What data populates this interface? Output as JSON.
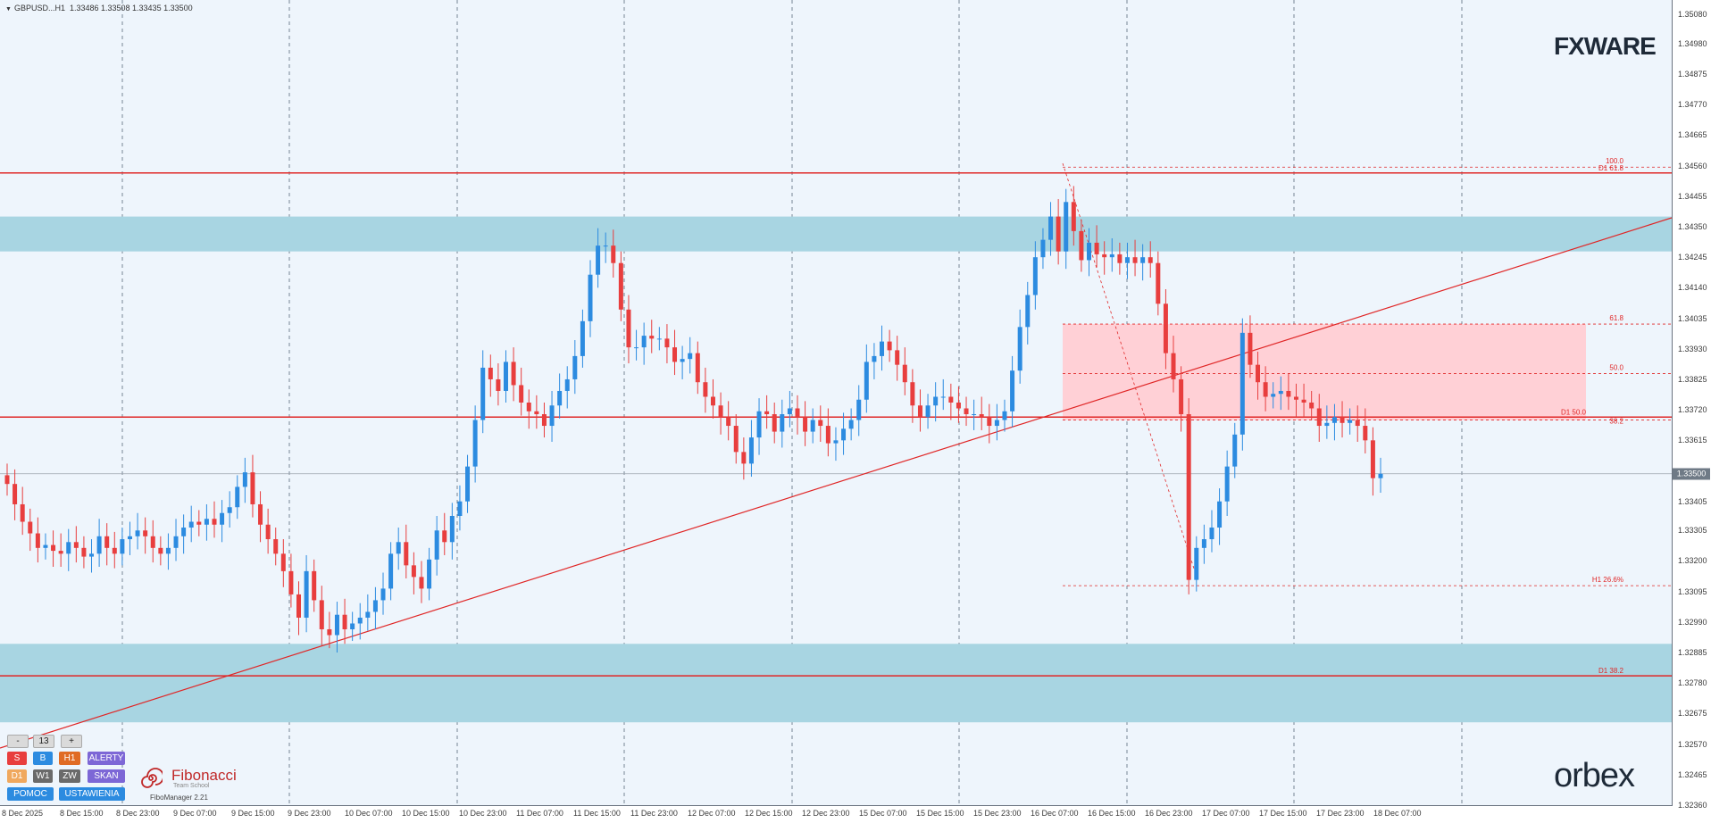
{
  "header": {
    "symbol": "GBPUSD...H1",
    "ohlc": "1.33486 1.33508 1.33435 1.33500"
  },
  "logos": {
    "fxware": "FXWARE",
    "orbex": "orbex"
  },
  "price_axis": {
    "labels": [
      "1.35080",
      "1.34980",
      "1.34875",
      "1.34770",
      "1.34665",
      "1.34560",
      "1.34455",
      "1.34350",
      "1.34245",
      "1.34140",
      "1.34035",
      "1.33930",
      "1.33825",
      "1.33720",
      "1.33615",
      "1.33510",
      "1.33405",
      "1.33305",
      "1.33200",
      "1.33095",
      "1.32990",
      "1.32885",
      "1.32780",
      "1.32675",
      "1.32570",
      "1.32465",
      "1.32360"
    ],
    "current_price": "1.33500"
  },
  "time_axis": {
    "labels": [
      "8 Dec 2025",
      "8 Dec 15:00",
      "8 Dec 23:00",
      "9 Dec 07:00",
      "9 Dec 15:00",
      "9 Dec 23:00",
      "10 Dec 07:00",
      "10 Dec 15:00",
      "10 Dec 23:00",
      "11 Dec 07:00",
      "11 Dec 15:00",
      "11 Dec 23:00",
      "12 Dec 07:00",
      "12 Dec 15:00",
      "12 Dec 23:00",
      "15 Dec 07:00",
      "15 Dec 15:00",
      "15 Dec 23:00",
      "16 Dec 07:00",
      "16 Dec 15:00",
      "16 Dec 23:00",
      "17 Dec 07:00",
      "17 Dec 15:00",
      "17 Dec 23:00",
      "18 Dec 07:00"
    ]
  },
  "levels": {
    "fib_100": "100.0",
    "d1_618": "D1 61.8",
    "fib_618": "61.8",
    "fib_500": "50.0",
    "d1_500": "D1 50.0",
    "fib_382": "38.2",
    "h1_266": "H1 26.6%",
    "d1_382": "D1 38.2"
  },
  "colors": {
    "bull": "#2c8be0",
    "bear": "#e83e3e",
    "zone_blue": "#a8d5e2",
    "zone_pink": "#ffd0d6",
    "line_red": "#e02626"
  },
  "panel": {
    "minus": "-",
    "value": "13",
    "plus": "+",
    "row1": [
      "S",
      "B",
      "H1",
      "ALERTY"
    ],
    "row2": [
      "D1",
      "W1",
      "ZW",
      "SKAN"
    ],
    "row3": [
      "POMOC",
      "USTAWIENIA"
    ],
    "brand": "Fibonacci",
    "brand_sub": "Team School",
    "version": "FiboManager 2.21"
  },
  "chart_data": {
    "type": "candlestick",
    "symbol": "GBPUSD",
    "timeframe": "H1",
    "ylim": [
      1.3236,
      1.3513
    ],
    "last_price": 1.335,
    "horizontal_levels": [
      1.33534,
      1.33694
    ],
    "zones": [
      {
        "kind": "supply",
        "from": 1.34265,
        "to": 1.34385
      },
      {
        "kind": "demand",
        "from": 1.32645,
        "to": 1.32915
      },
      {
        "kind": "fibo",
        "from": 1.33685,
        "to": 1.34015
      }
    ],
    "closes": [
      1.33465,
      1.33395,
      1.33335,
      1.33295,
      1.33245,
      1.33255,
      1.33235,
      1.33225,
      1.33265,
      1.33245,
      1.33215,
      1.33225,
      1.33285,
      1.33245,
      1.33225,
      1.33275,
      1.33285,
      1.33305,
      1.33285,
      1.33245,
      1.33225,
      1.33245,
      1.33285,
      1.33315,
      1.33335,
      1.33325,
      1.33345,
      1.33325,
      1.33365,
      1.33385,
      1.33455,
      1.33505,
      1.33395,
      1.33325,
      1.33275,
      1.33225,
      1.33165,
      1.33085,
      1.33005,
      1.33165,
      1.33065,
      1.32965,
      1.32945,
      1.33015,
      1.32965,
      1.32985,
      1.33005,
      1.33025,
      1.33065,
      1.33105,
      1.33225,
      1.33265,
      1.33185,
      1.33145,
      1.33105,
      1.33205,
      1.33305,
      1.33265,
      1.33355,
      1.33405,
      1.33525,
      1.33685,
      1.33865,
      1.33825,
      1.33785,
      1.33885,
      1.33805,
      1.33745,
      1.33715,
      1.33705,
      1.33665,
      1.33735,
      1.33785,
      1.33825,
      1.33905,
      1.34025,
      1.34185,
      1.34285,
      1.34285,
      1.34225,
      1.34065,
      1.33935,
      1.33935,
      1.33975,
      1.33965,
      1.33965,
      1.33935,
      1.33885,
      1.33895,
      1.33915,
      1.33815,
      1.33765,
      1.33735,
      1.33695,
      1.33665,
      1.33575,
      1.33535,
      1.33625,
      1.33715,
      1.33705,
      1.33645,
      1.33705,
      1.33725,
      1.33695,
      1.33645,
      1.33685,
      1.33665,
      1.33605,
      1.33615,
      1.33655,
      1.33685,
      1.33755,
      1.33885,
      1.33905,
      1.33955,
      1.33925,
      1.33875,
      1.33815,
      1.33735,
      1.33695,
      1.33735,
      1.33765,
      1.33765,
      1.33745,
      1.33725,
      1.33705,
      1.33705,
      1.33695,
      1.33665,
      1.33685,
      1.33715,
      1.33855,
      1.34005,
      1.34115,
      1.34245,
      1.34305,
      1.34385,
      1.34265,
      1.34435,
      1.34335,
      1.34235,
      1.34295,
      1.34255,
      1.34245,
      1.34255,
      1.34225,
      1.34245,
      1.34225,
      1.34245,
      1.34225,
      1.34085,
      1.33915,
      1.33825,
      1.33705,
      1.33135,
      1.33245,
      1.33275,
      1.33315,
      1.33405,
      1.33525,
      1.33635,
      1.33985,
      1.33875,
      1.33815,
      1.33765,
      1.33775,
      1.33785,
      1.33765,
      1.33755,
      1.33745,
      1.33725,
      1.33665,
      1.33675,
      1.33695,
      1.33675,
      1.33685,
      1.33665,
      1.33615,
      1.33485,
      1.335
    ]
  }
}
